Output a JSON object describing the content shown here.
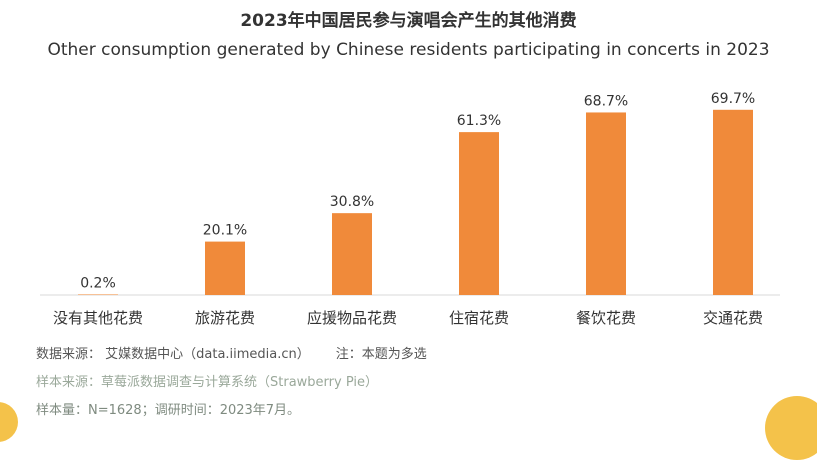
{
  "header": {
    "title_zh": "2023年中国居民参与演唱会产生的其他消费",
    "title_en": "Other consumption generated by Chinese residents participating in concerts in 2023"
  },
  "chart_data": {
    "type": "bar",
    "categories": [
      "没有其他花费",
      "旅游花费",
      "应援物品花费",
      "住宿花费",
      "餐饮花费",
      "交通花费"
    ],
    "values": [
      0.2,
      20.1,
      30.8,
      61.3,
      68.7,
      69.7
    ],
    "value_labels": [
      "0.2%",
      "20.1%",
      "30.8%",
      "61.3%",
      "68.7%",
      "69.7%"
    ],
    "title": "2023年中国居民参与演唱会产生的其他消费",
    "subtitle": "Other consumption generated by Chinese residents participating in concerts in 2023",
    "xlabel": "",
    "ylabel": "",
    "ylim": [
      0,
      70
    ],
    "grid": false,
    "bar_color": "#f08a3a"
  },
  "footer": {
    "source": "数据来源： 艾媒数据中心（data.iimedia.cn）",
    "note": "注：本题为多选",
    "sample_source": "样本来源：草莓派数据调查与计算系统（Strawberry Pie）",
    "sample_size": "样本量：N=1628；调研时间：2023年7月。"
  }
}
